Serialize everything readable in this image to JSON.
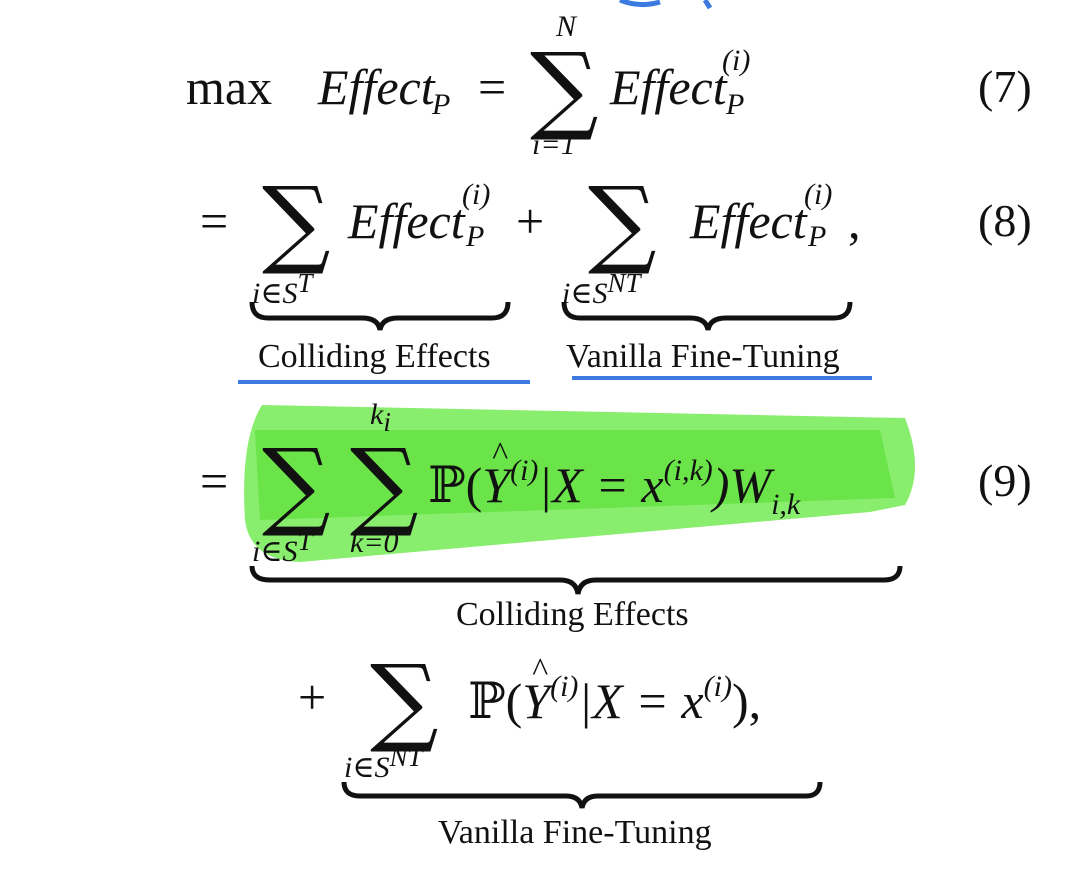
{
  "equations": {
    "eq7": {
      "lhs": "max",
      "effect": "Effect",
      "sub_p": "P",
      "equals": "=",
      "sum_top": "N",
      "sum_bottom": "i=1",
      "sup_i": "(i)",
      "number": "(7)"
    },
    "eq8": {
      "equals": "=",
      "sum1_bottom": "i∈S",
      "sum1_bottom_sup": "T",
      "effect": "Effect",
      "sub_p": "P",
      "sup_i": "(i)",
      "plus": "+",
      "sum2_bottom": "i∈S",
      "sum2_bottom_sup": "NT",
      "comma": ",",
      "brace1_label": "Colliding Effects",
      "brace2_label": "Vanilla Fine-Tuning",
      "number": "(8)"
    },
    "eq9": {
      "equals": "=",
      "sum1_bottom": "i∈S",
      "sum1_bottom_sup": "T",
      "sum2_top": "k",
      "sum2_top_sub": "i",
      "sum2_bottom": "k=0",
      "prob": "ℙ",
      "body_open": "(",
      "Y": "Y",
      "sup_i": "(i)",
      "given": "|X = x",
      "sup_ik": "(i,k)",
      "body_close": ")W",
      "w_sub": "i,k",
      "brace_label": "Colliding Effects",
      "number": "(9)",
      "plus": "+",
      "sum3_bottom": "i∈S",
      "sum3_bottom_sup": "NT",
      "tail_given": "|X = x",
      "tail_sup": "(i)",
      "tail_close": "),",
      "brace2_label": "Vanilla Fine-Tuning"
    }
  },
  "colors": {
    "ink": "#111111",
    "highlight": "#6be84a",
    "annotation_underline": "#3b7be0"
  }
}
